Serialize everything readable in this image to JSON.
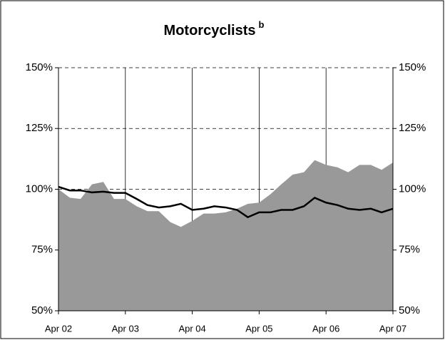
{
  "chart_data": {
    "type": "area_line",
    "title": "Motorcyclists",
    "title_note": "b",
    "x": [
      2002.25,
      2002.42,
      2002.58,
      2002.75,
      2002.92,
      2003.08,
      2003.25,
      2003.42,
      2003.58,
      2003.75,
      2003.92,
      2004.08,
      2004.25,
      2004.42,
      2004.58,
      2004.75,
      2004.92,
      2005.08,
      2005.25,
      2005.42,
      2005.58,
      2005.75,
      2005.92,
      2006.08,
      2006.25,
      2006.42,
      2006.58,
      2006.75,
      2006.92,
      2007.08,
      2007.25
    ],
    "series": [
      {
        "kind": "area",
        "color": "#999999",
        "values": [
          100,
          96.5,
          96,
          102,
          103,
          96,
          96,
          93,
          91,
          91,
          86.5,
          84.5,
          87,
          90,
          90,
          90.5,
          92,
          94,
          94.5,
          98,
          102,
          106,
          107,
          112,
          110,
          109,
          107,
          110,
          110,
          108,
          111
        ]
      },
      {
        "kind": "line",
        "color": "#000000",
        "values": [
          101,
          99.5,
          99.5,
          98.7,
          99,
          98.5,
          98.5,
          96,
          93.5,
          92.5,
          93,
          94,
          91.5,
          92,
          93,
          92.5,
          91.5,
          88.5,
          90.5,
          90.5,
          91.5,
          91.5,
          93,
          96.5,
          94.5,
          93.5,
          92,
          91.5,
          92,
          90.5,
          92
        ]
      }
    ],
    "xlim": [
      2002.25,
      2007.25
    ],
    "xticks": [
      {
        "value": 2002.25,
        "label": "Apr 02"
      },
      {
        "value": 2003.25,
        "label": "Apr 03"
      },
      {
        "value": 2004.25,
        "label": "Apr 04"
      },
      {
        "value": 2005.25,
        "label": "Apr 05"
      },
      {
        "value": 2006.25,
        "label": "Apr 06"
      },
      {
        "value": 2007.25,
        "label": "Apr 07"
      }
    ],
    "ylim": [
      50,
      150
    ],
    "yticks": [
      {
        "value": 50,
        "label": "50%"
      },
      {
        "value": 75,
        "label": "75%"
      },
      {
        "value": 100,
        "label": "100%"
      },
      {
        "value": 125,
        "label": "125%"
      },
      {
        "value": 150,
        "label": "150%"
      }
    ],
    "grid": true
  }
}
